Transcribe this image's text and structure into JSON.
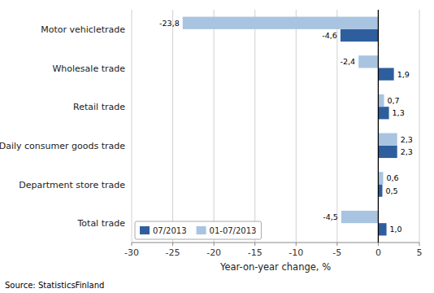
{
  "chart_data": {
    "type": "bar",
    "orientation": "horizontal",
    "categories": [
      "Motor vehicletrade",
      "Wholesale trade",
      "Retail trade",
      "Daily consumer goods trade",
      "Department store trade",
      "Total trade"
    ],
    "series": [
      {
        "name": "07/2013",
        "color": "#2e5e9e",
        "values": [
          -4.6,
          1.9,
          1.3,
          2.3,
          0.5,
          1.0
        ],
        "value_labels": [
          "-4,6",
          "1,9",
          "1,3",
          "2,3",
          "0,5",
          "1,0"
        ]
      },
      {
        "name": "01-07/2013",
        "color": "#a8c4e0",
        "values": [
          -23.8,
          -2.4,
          0.7,
          2.3,
          0.6,
          -4.5
        ],
        "value_labels": [
          "-23,8",
          "-2,4",
          "0,7",
          "2,3",
          "0,6",
          "-4,5"
        ]
      }
    ],
    "xlabel": "Year-on-year change, %",
    "annotations": [
      "Source: StatisticsFinland"
    ],
    "xlim": [
      -30,
      5
    ],
    "xticks": [
      -30,
      -25,
      -20,
      -15,
      -10,
      -5,
      0,
      5
    ],
    "grid": true,
    "legend": "lower left",
    "data_labels": true
  }
}
